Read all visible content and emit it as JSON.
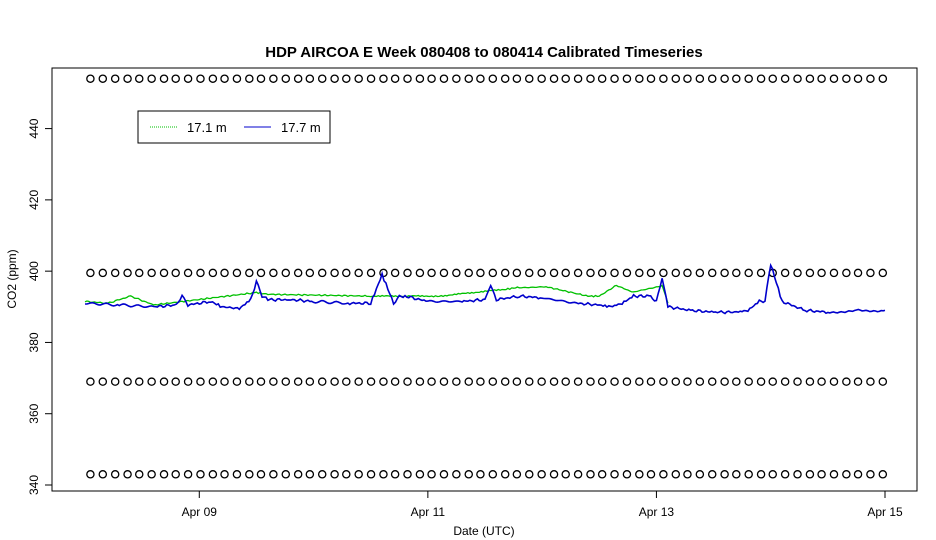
{
  "chart_data": {
    "type": "line",
    "title": "HDP AIRCOA E  Week 080408 to 080414  Calibrated Timeseries",
    "xlabel": "Date (UTC)",
    "ylabel": "CO2 (ppm)",
    "x_range_days": [
      8.0,
      15.0
    ],
    "ylim": [
      340,
      457
    ],
    "x_ticks": [
      {
        "x": 9,
        "label": "Apr 09"
      },
      {
        "x": 11,
        "label": "Apr 11"
      },
      {
        "x": 13,
        "label": "Apr 13"
      },
      {
        "x": 15,
        "label": "Apr 15"
      }
    ],
    "y_ticks": [
      {
        "y": 340,
        "label": "340"
      },
      {
        "y": 360,
        "label": "360"
      },
      {
        "y": 380,
        "label": "380"
      },
      {
        "y": 400,
        "label": "400"
      },
      {
        "y": 420,
        "label": "420"
      },
      {
        "y": 440,
        "label": "440"
      }
    ],
    "grid": false,
    "legend": {
      "placement": "top-left",
      "entries": [
        {
          "label": "17.1 m",
          "color": "#00c000",
          "style": "dotted"
        },
        {
          "label": "17.7 m",
          "color": "#0000cc",
          "style": "solid"
        }
      ]
    },
    "calibration_markers": {
      "symbol": "open-circle",
      "color": "#000000",
      "levels_ppm": [
        454,
        399.5,
        369,
        343
      ],
      "x_start": 8.05,
      "x_end": 14.98,
      "count_per_level": 66
    },
    "series": [
      {
        "name": "17.7 m",
        "color": "#0000cc",
        "x": [
          8.0,
          8.3,
          8.6,
          8.8,
          8.85,
          8.9,
          9.1,
          9.2,
          9.35,
          9.45,
          9.5,
          9.55,
          9.6,
          9.8,
          10.0,
          10.3,
          10.5,
          10.6,
          10.7,
          10.75,
          10.8,
          11.0,
          11.3,
          11.5,
          11.55,
          11.6,
          11.8,
          12.0,
          12.3,
          12.5,
          12.6,
          12.7,
          12.8,
          12.95,
          13.0,
          13.05,
          13.1,
          13.3,
          13.5,
          13.7,
          13.8,
          13.9,
          13.95,
          14.0,
          14.1,
          14.3,
          14.5,
          14.75,
          15.0
        ],
        "y": [
          391,
          390.5,
          390,
          390.5,
          393,
          390.5,
          391.5,
          390,
          389.5,
          392,
          397,
          393,
          392,
          392,
          391.5,
          391,
          391,
          399,
          391,
          393,
          393,
          391.5,
          391.5,
          392,
          396,
          392,
          393,
          392.5,
          391,
          390.5,
          390,
          391,
          393,
          393,
          391.5,
          398,
          390,
          389,
          388.5,
          388.5,
          389,
          391.5,
          391.5,
          402,
          391.5,
          389,
          388.5,
          389,
          389
        ]
      },
      {
        "name": "17.1 m",
        "color": "#00c000",
        "x": [
          8.0,
          8.2,
          8.4,
          8.6,
          9.5,
          9.6,
          10.5,
          11.1,
          11.7,
          11.8,
          12.05,
          12.4,
          12.5,
          12.65,
          12.8,
          13.05,
          13.1
        ],
        "y": [
          391.5,
          391,
          393,
          390.5,
          394,
          393.5,
          393,
          393,
          395,
          395.5,
          395.5,
          393,
          393,
          396,
          394,
          396,
          391
        ]
      }
    ]
  }
}
